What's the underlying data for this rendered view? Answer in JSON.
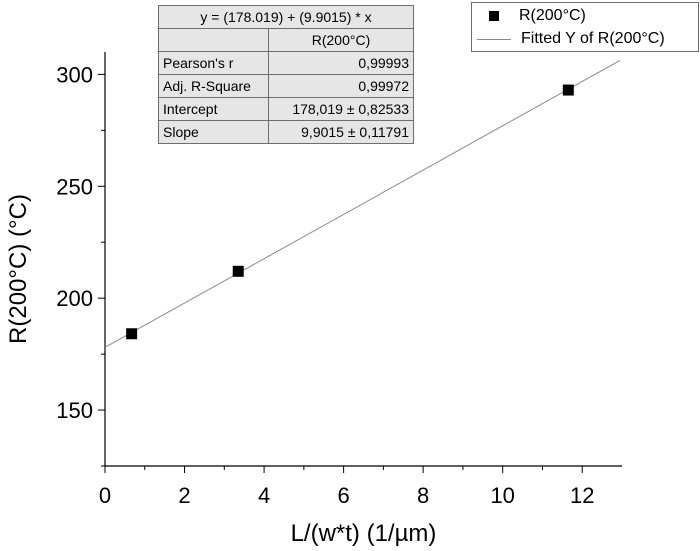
{
  "chart_data": {
    "type": "scatter",
    "xlabel": "L/(w*t) (1/µm)",
    "ylabel": "R(200°C) (°C)",
    "xlim": [
      0,
      13
    ],
    "ylim": [
      125,
      310
    ],
    "xticks": [
      0,
      2,
      4,
      6,
      8,
      10,
      12
    ],
    "yticks": [
      150,
      200,
      250,
      300
    ],
    "grid": false,
    "legend_position": "top-right",
    "series": [
      {
        "name": "R(200°C)",
        "marker": "square",
        "color": "#000000",
        "x": [
          0.67,
          3.35,
          11.65
        ],
        "y": [
          184.1,
          212.0,
          293.0
        ]
      }
    ],
    "fit_line": {
      "name": "Fitted Y of R(200°C)",
      "color": "#8a8a8a",
      "intercept": 178.019,
      "slope": 9.9015,
      "x_range": [
        0,
        13
      ]
    },
    "fit_table": {
      "equation": "y = (178.019) + (9.9015) * x",
      "column_header": "R(200°C)",
      "rows": [
        {
          "label": "Pearson's r",
          "value": "0,99993"
        },
        {
          "label": "Adj. R-Square",
          "value": "0,99972"
        },
        {
          "label": "Intercept",
          "value": "178,019 ± 0,82533"
        },
        {
          "label": "Slope",
          "value": "9,9015 ± 0,11791"
        }
      ]
    }
  }
}
